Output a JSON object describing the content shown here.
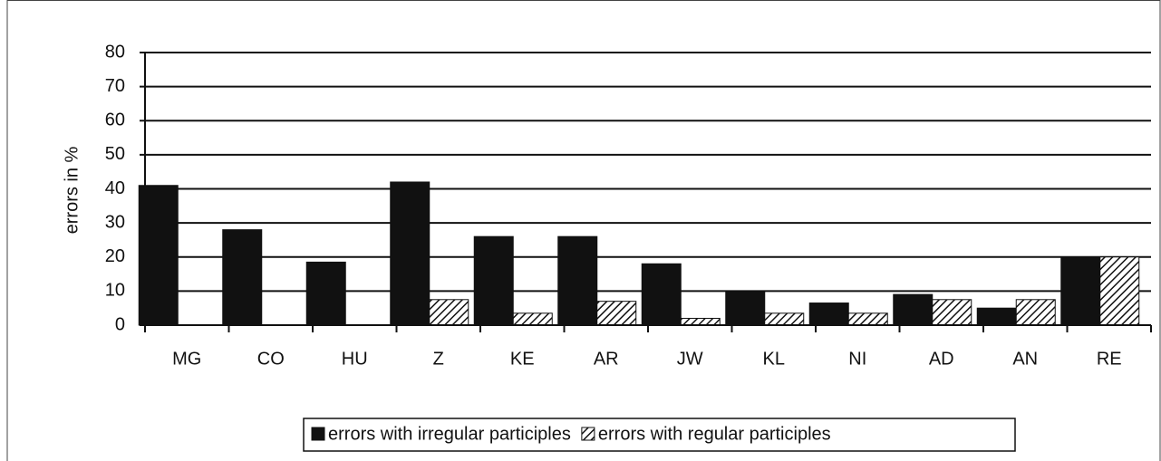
{
  "chart_data": {
    "type": "bar",
    "y_label": "errors in %",
    "categories": [
      "MG",
      "CO",
      "HU",
      "Z",
      "KE",
      "AR",
      "JW",
      "KL",
      "NI",
      "AD",
      "AN",
      "RE"
    ],
    "series": [
      {
        "name": "errors with irregular participles",
        "color": "#111111",
        "values": [
          41,
          28,
          18.5,
          42,
          26,
          26,
          18,
          10,
          6.5,
          9,
          5,
          20
        ]
      },
      {
        "name": "errors with regular participles",
        "color": "hatch",
        "values": [
          0,
          0,
          0,
          7.5,
          3.5,
          7,
          2,
          3.5,
          3.5,
          7.5,
          7.5,
          20
        ]
      }
    ],
    "ylim": [
      0,
      80
    ],
    "yticks": [
      0,
      10,
      20,
      30,
      40,
      50,
      60,
      70,
      80
    ],
    "grid": true
  }
}
